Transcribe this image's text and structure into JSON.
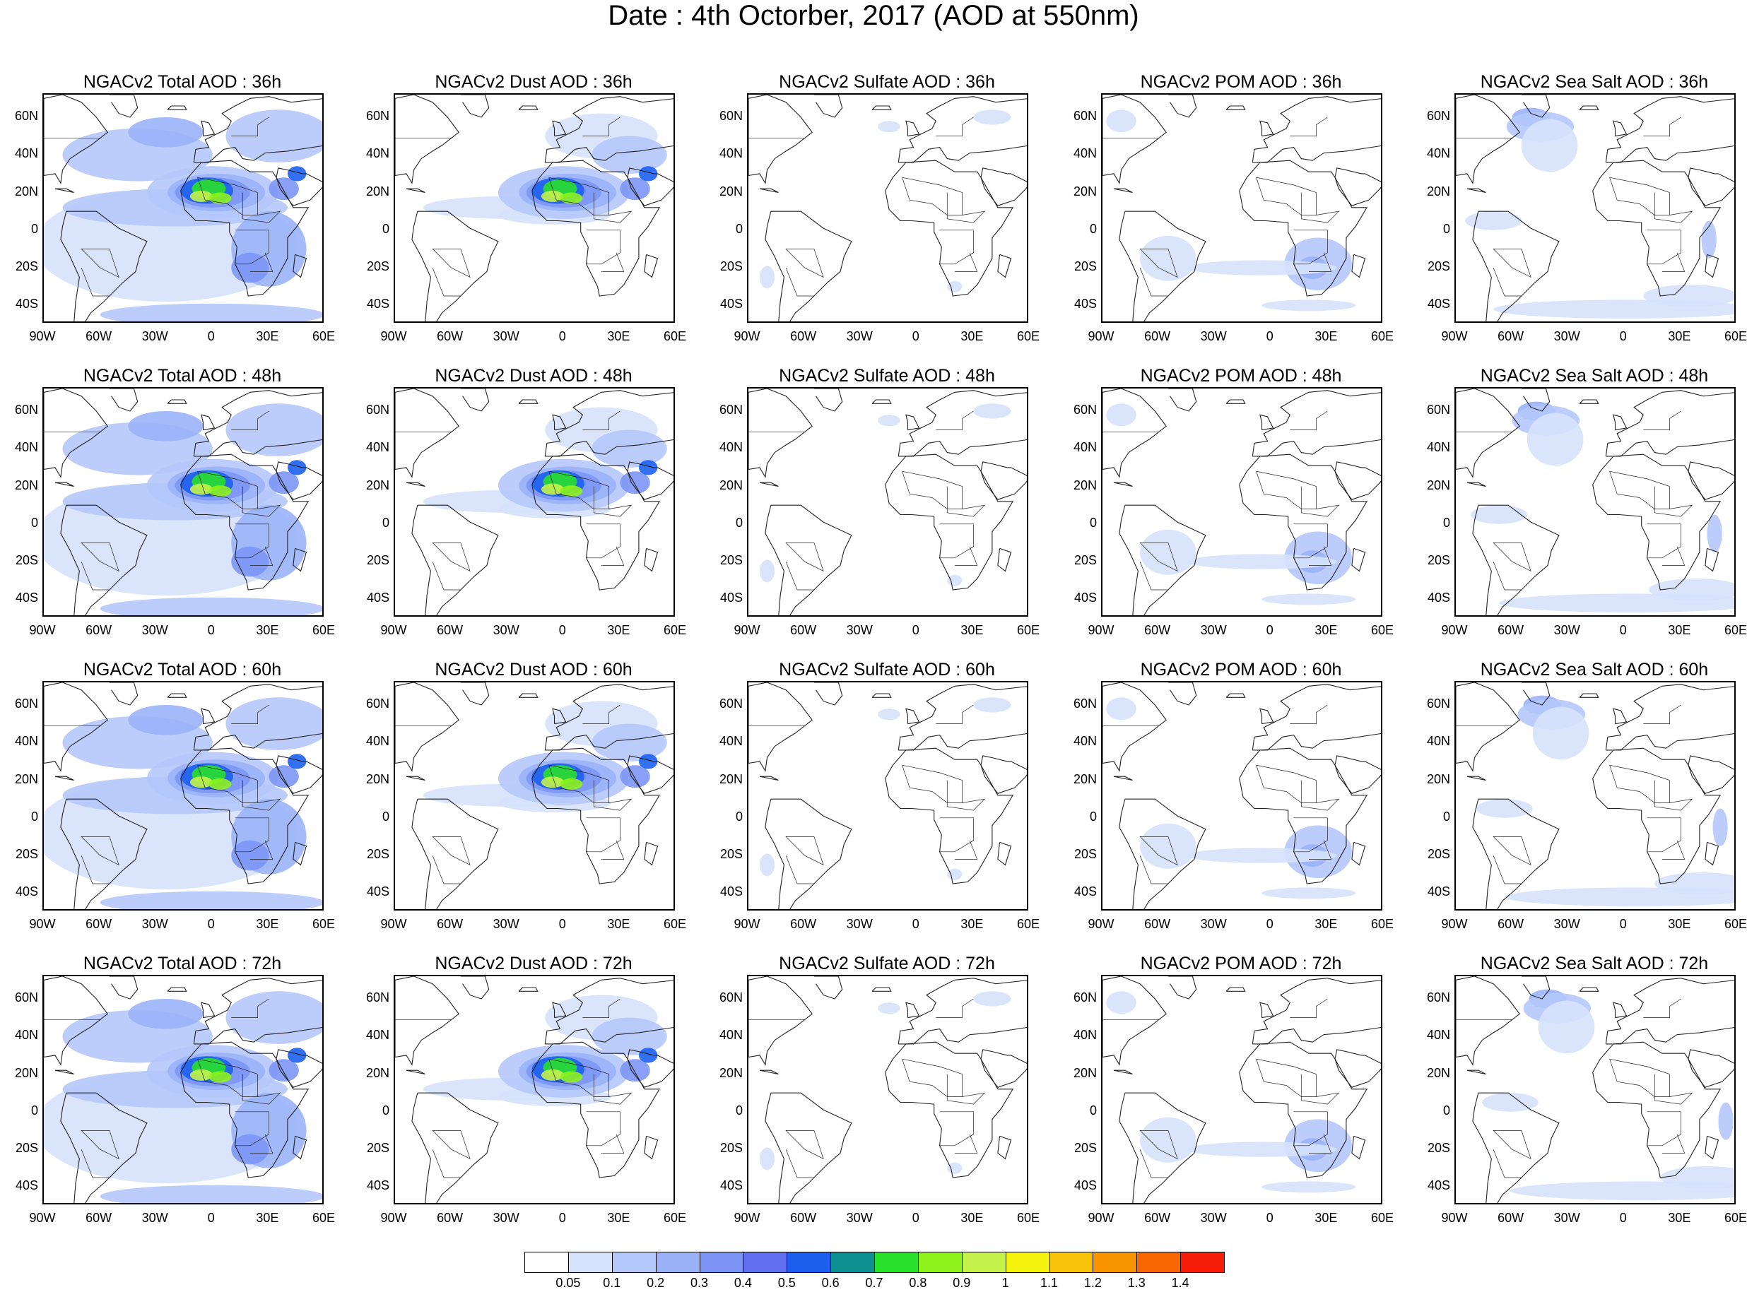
{
  "title": "Date : 4th Octorber, 2017 (AOD at 550nm)",
  "panel_titles": [
    [
      "NGACv2 Total AOD : 36h",
      "NGACv2 Dust AOD : 36h",
      "NGACv2 Sulfate AOD : 36h",
      "NGACv2 POM AOD : 36h",
      "NGACv2 Sea Salt AOD : 36h"
    ],
    [
      "NGACv2 Total AOD : 48h",
      "NGACv2 Dust AOD : 48h",
      "NGACv2 Sulfate AOD : 48h",
      "NGACv2 POM AOD : 48h",
      "NGACv2 Sea Salt AOD : 48h"
    ],
    [
      "NGACv2 Total AOD : 60h",
      "NGACv2 Dust AOD : 60h",
      "NGACv2 Sulfate AOD : 60h",
      "NGACv2 POM AOD : 60h",
      "NGACv2 Sea Salt AOD : 60h"
    ],
    [
      "NGACv2 Total AOD : 72h",
      "NGACv2 Dust AOD : 72h",
      "NGACv2 Sulfate AOD : 72h",
      "NGACv2 POM AOD : 72h",
      "NGACv2 Sea Salt  AOD : 72h"
    ]
  ],
  "lat_labels": [
    "60N",
    "40N",
    "20N",
    "0",
    "20S",
    "40S"
  ],
  "lon_labels": [
    "90W",
    "60W",
    "30W",
    "0",
    "30E",
    "60E"
  ],
  "colorbar": {
    "levels": [
      "0.05",
      "0.1",
      "0.2",
      "0.3",
      "0.4",
      "0.5",
      "0.6",
      "0.7",
      "0.8",
      "0.9",
      "1",
      "1.1",
      "1.2",
      "1.3",
      "1.4"
    ],
    "colors": [
      "#ffffff",
      "#d6e2fc",
      "#b5c8fb",
      "#9ab2f8",
      "#7d96f5",
      "#5f6ff0",
      "#1c5fef",
      "#0e9090",
      "#29e02a",
      "#8ef21c",
      "#c4f24a",
      "#f6f40e",
      "#f7c208",
      "#f79400",
      "#f76600",
      "#f51d08"
    ]
  },
  "chart_data": {
    "type": "heatmap",
    "title": "Date : 4th Octorber, 2017 (AOD at 550nm)",
    "x_range": [
      "90W",
      "60E"
    ],
    "y_range": [
      "50S",
      "70N"
    ],
    "variables": [
      "Total AOD",
      "Dust AOD",
      "Sulfate AOD",
      "POM AOD",
      "Sea Salt AOD"
    ],
    "forecast_hours": [
      "36h",
      "48h",
      "60h",
      "72h"
    ]
  }
}
